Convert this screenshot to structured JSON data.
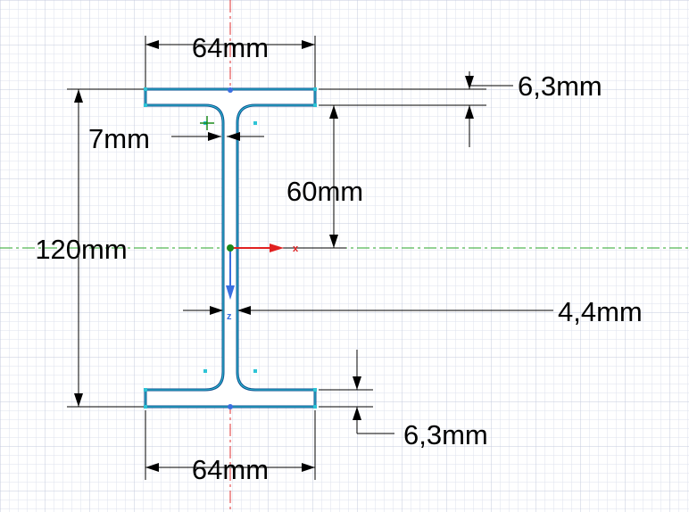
{
  "dimensions": {
    "flange_width_top": "64mm",
    "flange_width_bottom": "64mm",
    "flange_thickness_top": "6,3mm",
    "flange_thickness_bottom": "6,3mm",
    "fillet_radius": "7mm",
    "half_height": "60mm",
    "total_height": "120mm",
    "web_thickness": "4,4mm"
  },
  "axes": {
    "x_label": "x",
    "z_label": "z",
    "x_color": "#e02020",
    "z_color": "#3a6fe0",
    "centroid_color": "#1a8a1a",
    "centerline_vertical_color": "#e03030",
    "centerline_horizontal_color": "#2aa52a"
  },
  "colors": {
    "grid_minor": "#dde2ee",
    "grid_major": "#c4cbde",
    "profile_outline": "#0f4f8f",
    "profile_fill": "#ffffff",
    "profile_highlight": "#2ec4d6",
    "dimension_line": "#000000"
  }
}
